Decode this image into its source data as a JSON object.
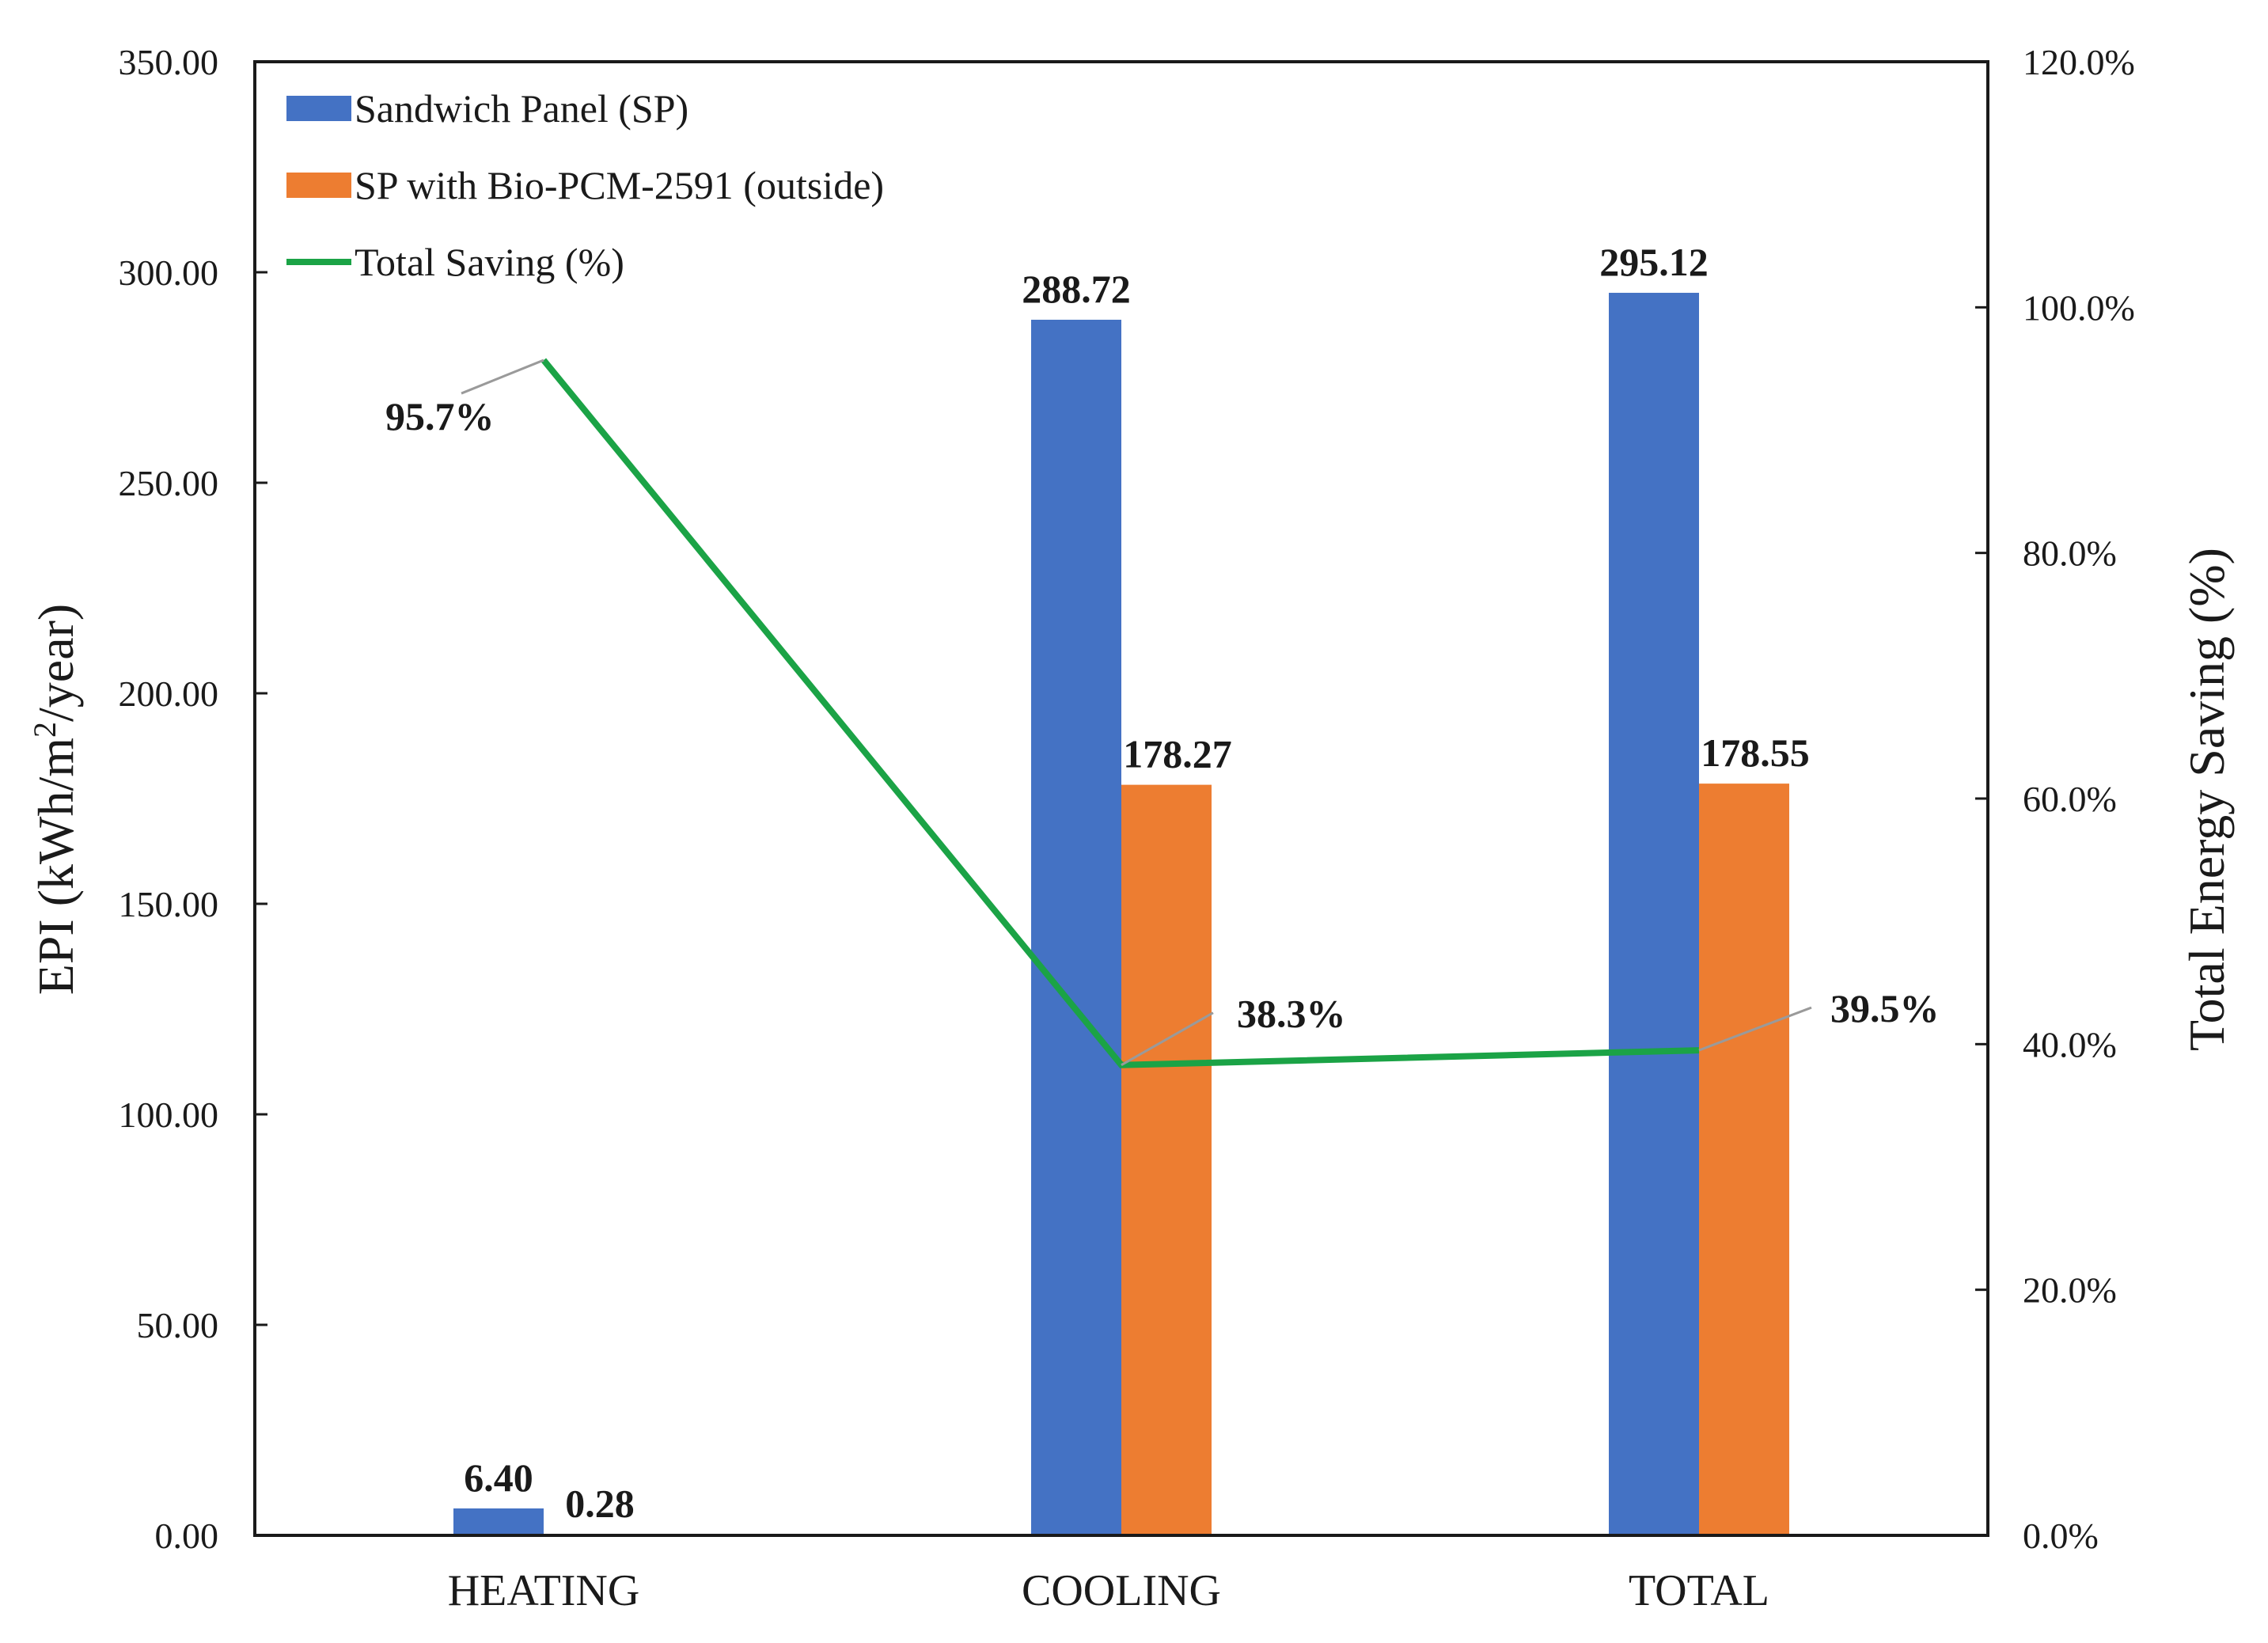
{
  "chart_data": {
    "type": "bar",
    "categories": [
      "HEATING",
      "COOLING",
      "TOTAL"
    ],
    "series": [
      {
        "name": "Sandwich Panel (SP)",
        "type": "bar",
        "axis": "left",
        "color": "#4472C4",
        "values": [
          6.4,
          288.72,
          295.12
        ],
        "labels": [
          "6.40",
          "288.72",
          "295.12"
        ]
      },
      {
        "name": "SP with Bio-PCM-2591 (outside)",
        "type": "bar",
        "axis": "left",
        "color": "#ED7D31",
        "values": [
          0.28,
          178.27,
          178.55
        ],
        "labels": [
          "0.28",
          "178.27",
          "178.55"
        ]
      },
      {
        "name": "Total Saving (%)",
        "type": "line",
        "axis": "right",
        "color": "#1BA346",
        "values": [
          95.7,
          38.3,
          39.5
        ],
        "labels": [
          "95.7%",
          "38.3%",
          "39.5%"
        ]
      }
    ],
    "ylabel_left": [
      "EPI (kWh/m",
      "2",
      "/year)"
    ],
    "ylabel_right": "Total Energy Saving (%)",
    "ylim_left": [
      0,
      350
    ],
    "ylim_right": [
      0,
      120
    ],
    "yticks_left": [
      "0.00",
      "50.00",
      "100.00",
      "150.00",
      "200.00",
      "250.00",
      "300.00",
      "350.00"
    ],
    "yticks_right": [
      "0.0%",
      "20.0%",
      "40.0%",
      "60.0%",
      "80.0%",
      "100.0%",
      "120.0%"
    ],
    "legend_position": "top-left",
    "grid": false
  }
}
